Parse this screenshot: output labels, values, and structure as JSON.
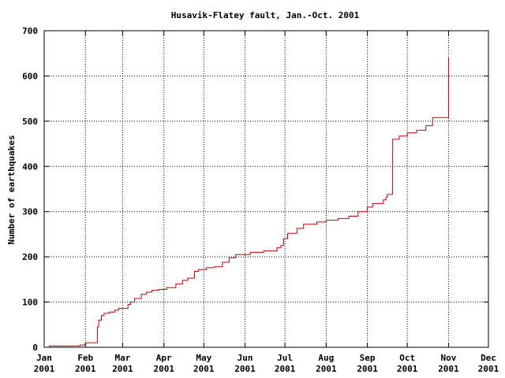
{
  "chart_data": {
    "type": "line",
    "title": "Husavik-Flatey fault, Jan.-Oct. 2001",
    "xlabel": "",
    "ylabel": "Number of earthquakes",
    "xlim": [
      "2001-01-01",
      "2001-12-01"
    ],
    "ylim": [
      0,
      700
    ],
    "grid": true,
    "yticks": [
      0,
      100,
      200,
      300,
      400,
      500,
      600,
      700
    ],
    "ytick_labels": [
      "0",
      "100",
      "200",
      "300",
      "400",
      "500",
      "600",
      "700"
    ],
    "xticks": [
      "2001-01-01",
      "2001-02-01",
      "2001-03-01",
      "2001-04-01",
      "2001-05-01",
      "2001-06-01",
      "2001-07-01",
      "2001-08-01",
      "2001-09-01",
      "2001-10-01",
      "2001-11-01",
      "2001-12-01"
    ],
    "xtick_labels": [
      [
        "Jan",
        "2001"
      ],
      [
        "Feb",
        "2001"
      ],
      [
        "Mar",
        "2001"
      ],
      [
        "Apr",
        "2001"
      ],
      [
        "May",
        "2001"
      ],
      [
        "Jun",
        "2001"
      ],
      [
        "Jul",
        "2001"
      ],
      [
        "Aug",
        "2001"
      ],
      [
        "Sep",
        "2001"
      ],
      [
        "Oct",
        "2001"
      ],
      [
        "Nov",
        "2001"
      ],
      [
        "Dec",
        "2001"
      ]
    ],
    "colors": {
      "series": "#cc0000",
      "grid": "#000000"
    },
    "series": [
      {
        "step": true,
        "x": [
          "2001-01-01",
          "2001-01-05",
          "2001-01-28",
          "2001-02-01",
          "2001-02-10",
          "2001-02-10",
          "2001-02-11",
          "2001-02-13",
          "2001-02-15",
          "2001-02-19",
          "2001-02-23",
          "2001-02-26",
          "2001-03-05",
          "2001-03-07",
          "2001-03-10",
          "2001-03-15",
          "2001-03-19",
          "2001-03-23",
          "2001-03-28",
          "2001-04-03",
          "2001-04-10",
          "2001-04-15",
          "2001-04-19",
          "2001-04-24",
          "2001-04-27",
          "2001-04-27",
          "2001-05-03",
          "2001-05-09",
          "2001-05-15",
          "2001-05-20",
          "2001-05-25",
          "2001-06-05",
          "2001-06-15",
          "2001-06-25",
          "2001-06-28",
          "2001-06-30",
          "2001-07-03",
          "2001-07-10",
          "2001-07-15",
          "2001-07-25",
          "2001-08-01",
          "2001-08-10",
          "2001-08-18",
          "2001-08-25",
          "2001-09-01",
          "2001-09-05",
          "2001-09-13",
          "2001-09-15",
          "2001-09-16",
          "2001-09-20",
          "2001-09-25",
          "2001-10-01",
          "2001-10-08",
          "2001-10-15",
          "2001-10-20",
          "2001-11-01",
          "2001-11-01",
          "2001-11-01"
        ],
        "y": [
          0,
          3,
          5,
          10,
          12,
          45,
          60,
          70,
          75,
          78,
          82,
          86,
          95,
          100,
          108,
          117,
          122,
          126,
          128,
          132,
          140,
          148,
          153,
          168,
          172,
          172,
          176,
          178,
          188,
          198,
          205,
          210,
          213,
          220,
          225,
          240,
          252,
          263,
          272,
          277,
          281,
          285,
          290,
          300,
          310,
          318,
          326,
          332,
          338,
          460,
          467,
          474,
          480,
          490,
          508,
          513,
          600,
          640
        ]
      }
    ]
  }
}
